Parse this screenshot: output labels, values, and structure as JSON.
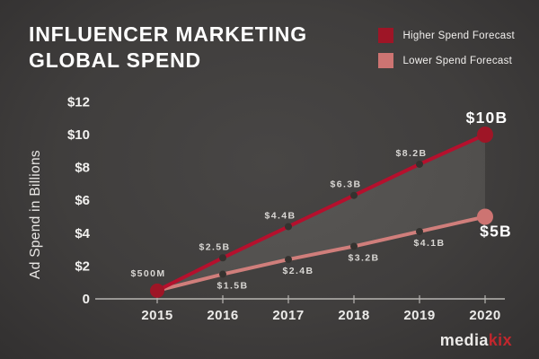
{
  "title": {
    "line1": "INFLUENCER MARKETING",
    "line2": "GLOBAL SPEND"
  },
  "logo": {
    "part1": "media",
    "part2": "kix"
  },
  "chart_data": {
    "type": "line",
    "title": "Influencer Marketing Global Spend",
    "ylabel": "Ad Spend in Billions",
    "xlabel": "",
    "x": [
      2015,
      2016,
      2017,
      2018,
      2019,
      2020
    ],
    "x_tick_labels": [
      "2015",
      "2016",
      "2017",
      "2018",
      "2019",
      "2020"
    ],
    "y_tick_labels": [
      "$12",
      "$10",
      "$8",
      "$6",
      "$4",
      "$2",
      "0"
    ],
    "y_tick_values": [
      12,
      10,
      8,
      6,
      4,
      2,
      0
    ],
    "ylim": [
      0,
      12
    ],
    "grid": false,
    "legend_position": "top-right",
    "area_between_series": true,
    "series": [
      {
        "name": "Higher Spend Forecast",
        "color": "#b5102d",
        "legend_color": "#9e1526",
        "values": [
          0.5,
          2.5,
          4.4,
          6.3,
          8.2,
          10
        ],
        "labels": [
          "$500M",
          "$2.5B",
          "$4.4B",
          "$6.3B",
          "$8.2B",
          "$10B"
        ]
      },
      {
        "name": "Lower Spend Forecast",
        "color": "#d07e7b",
        "legend_color": "#cd7472",
        "values": [
          0.5,
          1.5,
          2.4,
          3.2,
          4.1,
          5
        ],
        "labels": [
          "$500M",
          "$1.5B",
          "$2.4B",
          "$3.2B",
          "$4.1B",
          "$5B"
        ]
      }
    ]
  }
}
